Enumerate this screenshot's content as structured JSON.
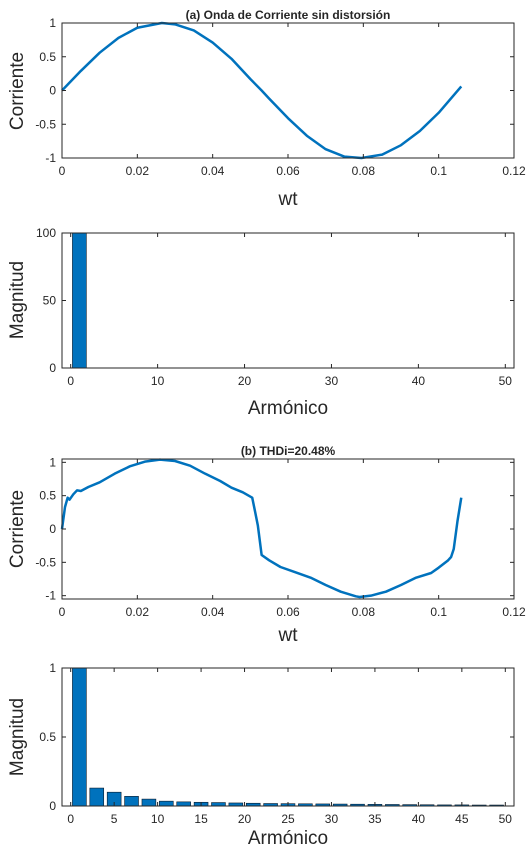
{
  "charts": [
    {
      "type": "line",
      "title": "(a)  Onda de Corriente sin distorsión",
      "xlabel": "wt",
      "ylabel": "Corriente",
      "xlim": [
        0,
        0.12
      ],
      "ylim": [
        -1,
        1
      ],
      "xticks": [
        "0",
        "0.02",
        "0.04",
        "0.06",
        "0.08",
        "0.1",
        "0.12"
      ],
      "yticks": [
        "-1",
        "-0.5",
        "0",
        "0.5",
        "1"
      ]
    },
    {
      "type": "bar",
      "title": "",
      "xlabel": "Armónico",
      "ylabel": "Magnitud",
      "xlim": [
        -1,
        51
      ],
      "ylim": [
        0,
        100
      ],
      "xticks": [
        "0",
        "10",
        "20",
        "30",
        "40",
        "50"
      ],
      "yticks": [
        "0",
        "50",
        "100"
      ]
    },
    {
      "type": "line",
      "title": "(b)  THDi=20.48%",
      "xlabel": "wt",
      "ylabel": "Corriente",
      "xlim": [
        0,
        0.12
      ],
      "ylim": [
        -1.05,
        1.05
      ],
      "xticks": [
        "0",
        "0.02",
        "0.04",
        "0.06",
        "0.08",
        "0.1",
        "0.12"
      ],
      "yticks": [
        "-1",
        "-0.5",
        "0",
        "0.5",
        "1"
      ]
    },
    {
      "type": "bar",
      "title": "",
      "xlabel": "Armónico",
      "ylabel": "Magnitud",
      "xlim": [
        -1,
        51
      ],
      "ylim": [
        0,
        1
      ],
      "xticks": [
        "0",
        "5",
        "10",
        "15",
        "20",
        "25",
        "30",
        "35",
        "40",
        "45",
        "50"
      ],
      "yticks": [
        "0",
        "0.5",
        "1"
      ]
    }
  ],
  "chart_data": [
    {
      "type": "line",
      "title": "(a)  Onda de Corriente sin distorsión",
      "xlabel": "wt",
      "ylabel": "Corriente",
      "xlim": [
        0,
        0.12
      ],
      "ylim": [
        -1,
        1
      ],
      "series": [
        {
          "x": [
            0,
            0.005,
            0.01,
            0.015,
            0.02,
            0.0265,
            0.03,
            0.035,
            0.04,
            0.045,
            0.05,
            0.053,
            0.055,
            0.06,
            0.065,
            0.07,
            0.075,
            0.0795,
            0.085,
            0.09,
            0.095,
            0.1,
            0.106
          ],
          "y": [
            0,
            0.29,
            0.56,
            0.78,
            0.93,
            1.0,
            0.98,
            0.89,
            0.71,
            0.47,
            0.17,
            0.0,
            -0.12,
            -0.41,
            -0.67,
            -0.87,
            -0.98,
            -1.0,
            -0.95,
            -0.81,
            -0.6,
            -0.33,
            0.06
          ]
        }
      ]
    },
    {
      "type": "bar",
      "xlabel": "Armónico",
      "ylabel": "Magnitud",
      "xlim": [
        -1,
        51
      ],
      "ylim": [
        0,
        100
      ],
      "categories": [
        1
      ],
      "values": [
        100
      ]
    },
    {
      "type": "line",
      "title": "(b)  THDi=20.48%",
      "xlabel": "wt",
      "ylabel": "Corriente",
      "xlim": [
        0,
        0.12
      ],
      "ylim": [
        -1.05,
        1.05
      ],
      "series": [
        {
          "x": [
            0,
            0.0008,
            0.0015,
            0.002,
            0.003,
            0.004,
            0.005,
            0.007,
            0.01,
            0.014,
            0.018,
            0.022,
            0.026,
            0.03,
            0.034,
            0.038,
            0.042,
            0.045,
            0.048,
            0.0505,
            0.0513,
            0.052,
            0.053,
            0.055,
            0.058,
            0.062,
            0.066,
            0.07,
            0.074,
            0.078,
            0.079,
            0.082,
            0.086,
            0.09,
            0.094,
            0.098,
            0.1,
            0.1025,
            0.1033,
            0.104,
            0.105,
            0.106
          ],
          "y": [
            0.0,
            0.33,
            0.47,
            0.44,
            0.52,
            0.58,
            0.57,
            0.63,
            0.7,
            0.83,
            0.94,
            1.01,
            1.04,
            1.02,
            0.95,
            0.83,
            0.72,
            0.62,
            0.55,
            0.47,
            0.25,
            0.05,
            -0.39,
            -0.47,
            -0.57,
            -0.65,
            -0.73,
            -0.84,
            -0.94,
            -1.01,
            -1.02,
            -1.0,
            -0.94,
            -0.84,
            -0.73,
            -0.66,
            -0.58,
            -0.47,
            -0.42,
            -0.3,
            0.12,
            0.47
          ]
        }
      ]
    },
    {
      "type": "bar",
      "xlabel": "Armónico",
      "ylabel": "Magnitud",
      "xlim": [
        -1,
        51
      ],
      "ylim": [
        0,
        1
      ],
      "categories": [
        1,
        3,
        5,
        7,
        9,
        11,
        13,
        15,
        17,
        19,
        21,
        23,
        25,
        27,
        29,
        31,
        33,
        35,
        37,
        39,
        41,
        43,
        45,
        47,
        49
      ],
      "values": [
        1.0,
        0.13,
        0.1,
        0.07,
        0.05,
        0.035,
        0.03,
        0.027,
        0.025,
        0.022,
        0.02,
        0.018,
        0.017,
        0.016,
        0.015,
        0.014,
        0.013,
        0.012,
        0.011,
        0.01,
        0.009,
        0.008,
        0.008,
        0.007,
        0.007
      ]
    }
  ]
}
